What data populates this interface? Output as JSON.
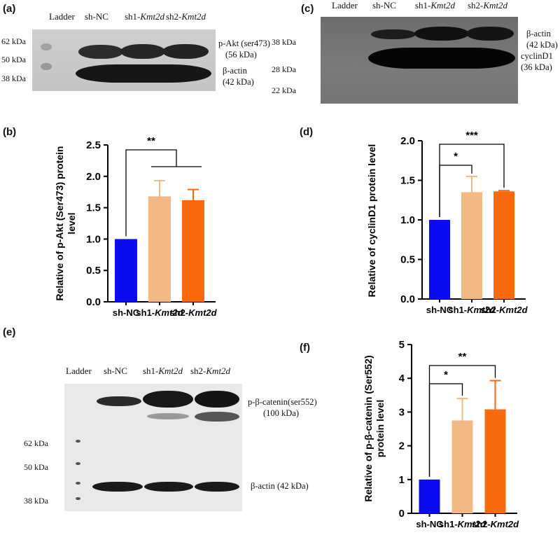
{
  "panels": {
    "a": {
      "label": "(a)",
      "lanes": [
        "Ladder",
        "sh-NC",
        "sh1-",
        "sh2-"
      ],
      "lane_italic": "Kmt2d",
      "markers": [
        "62 kDa",
        "50 kDa",
        "38 kDa"
      ],
      "bands": [
        {
          "name": "p-Akt (ser473)",
          "size": "(56 kDa)"
        },
        {
          "name": "β-actin",
          "size": "(42 kDa)"
        }
      ]
    },
    "c": {
      "label": "(c)",
      "lanes": [
        "Ladder",
        "sh-NC",
        "sh1-",
        "sh2-"
      ],
      "lane_italic": "Kmt2d",
      "markers": [
        "38 kDa",
        "28 kDa",
        "22 kDa"
      ],
      "bands": [
        {
          "name": "β-actin",
          "size": "(42 kDa)"
        },
        {
          "name": "cyclinD1",
          "size": "(36 kDa)"
        }
      ]
    },
    "e": {
      "label": "(e)",
      "lanes": [
        "Ladder",
        "sh-NC",
        "sh1-",
        "sh2-"
      ],
      "lane_italic": "Kmt2d",
      "markers": [
        "62 kDa",
        "50 kDa",
        "38 kDa"
      ],
      "bands": [
        {
          "name": "p-β-catenin(ser552)",
          "size": "(100 kDa)"
        },
        {
          "name": "β-actin (42 kDa)",
          "size": ""
        }
      ]
    },
    "b": {
      "label": "(b)"
    },
    "d": {
      "label": "(d)"
    },
    "f": {
      "label": "(f)"
    }
  },
  "colors": {
    "sh-NC": "#0b0bf2",
    "sh1-Kmt2d": "#f3b984",
    "sh2-Kmt2d": "#f9690e"
  },
  "chart_data": [
    {
      "panel": "b",
      "type": "bar",
      "categories": [
        "sh-NC",
        "sh1-Kmt2d",
        "sh2-Kmt2d"
      ],
      "values": [
        1.0,
        1.68,
        1.62
      ],
      "errors": [
        0,
        0.25,
        0.17
      ],
      "ylabel": "Relative of p-Akt (Ser473) protein level",
      "ylim": [
        0,
        2.5
      ],
      "yticks": [
        "0.0",
        "0.5",
        "1.0",
        "1.5",
        "2.0",
        "2.5"
      ],
      "significance": [
        {
          "from": "sh-NC",
          "to": [
            "sh1-Kmt2d",
            "sh2-Kmt2d"
          ],
          "text": "**"
        }
      ]
    },
    {
      "panel": "d",
      "type": "bar",
      "categories": [
        "sh-NC",
        "sh1-Kmt2d",
        "sh2-Kmt2d"
      ],
      "values": [
        1.0,
        1.35,
        1.36
      ],
      "errors": [
        0,
        0.2,
        0.01
      ],
      "ylabel": "Relative of cyclinD1 protein level",
      "ylim": [
        0,
        2.0
      ],
      "yticks": [
        "0.0",
        "0.5",
        "1.0",
        "1.5",
        "2.0"
      ],
      "significance": [
        {
          "from": "sh-NC",
          "to": [
            "sh1-Kmt2d"
          ],
          "text": "*"
        },
        {
          "from": "sh-NC",
          "to": [
            "sh2-Kmt2d"
          ],
          "text": "***"
        }
      ]
    },
    {
      "panel": "f",
      "type": "bar",
      "categories": [
        "sh-NC",
        "sh1-Kmt2d",
        "sh2-Kmt2d"
      ],
      "values": [
        1.0,
        2.75,
        3.08
      ],
      "errors": [
        0,
        0.65,
        0.85
      ],
      "ylabel": "Relative of p-β-catenin (Ser552) protein level",
      "ylim": [
        0,
        5
      ],
      "yticks": [
        "0",
        "1",
        "2",
        "3",
        "4",
        "5"
      ],
      "significance": [
        {
          "from": "sh-NC",
          "to": [
            "sh1-Kmt2d"
          ],
          "text": "*"
        },
        {
          "from": "sh-NC",
          "to": [
            "sh2-Kmt2d"
          ],
          "text": "**"
        }
      ]
    }
  ]
}
